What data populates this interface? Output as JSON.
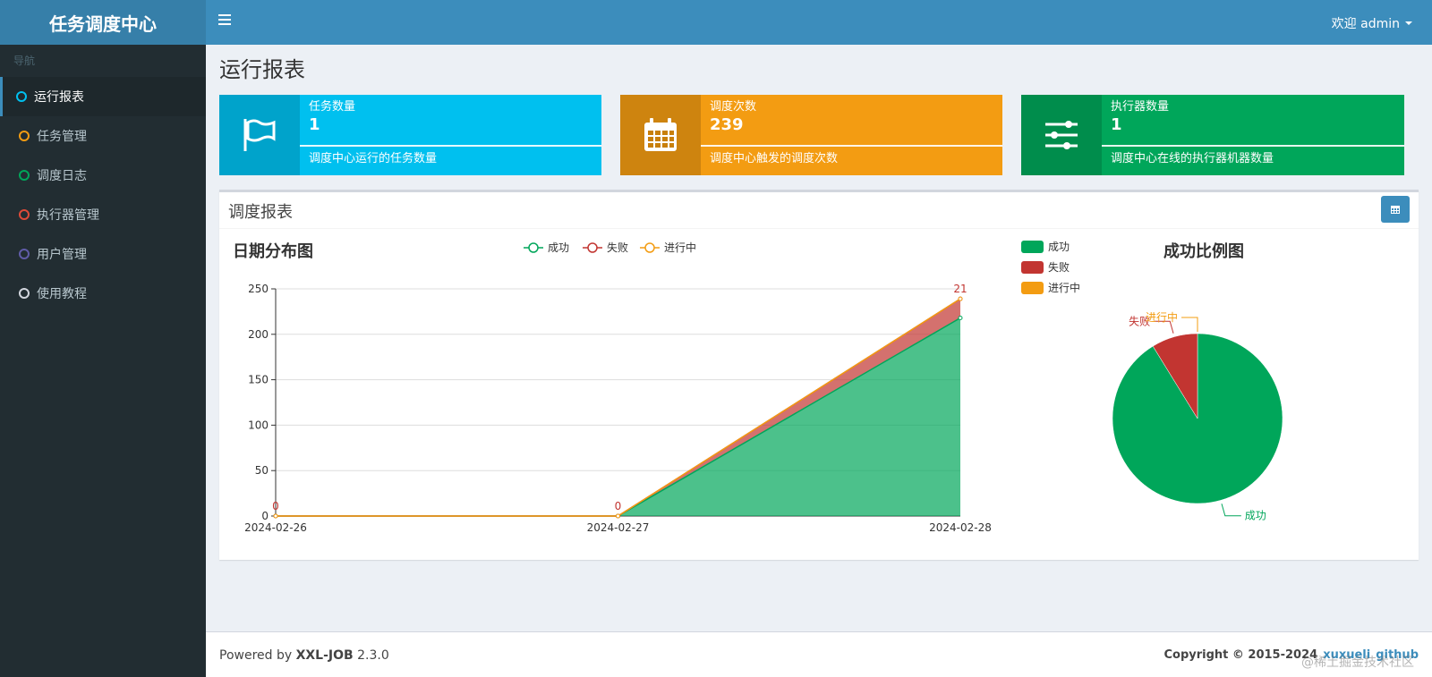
{
  "app": {
    "logo_title": "任务调度中心"
  },
  "header": {
    "welcome": "欢迎 admin"
  },
  "sidebar": {
    "nav_header": "导航",
    "items": [
      {
        "label": "运行报表",
        "color": "#00c0ef"
      },
      {
        "label": "任务管理",
        "color": "#f39c12"
      },
      {
        "label": "调度日志",
        "color": "#00a65a"
      },
      {
        "label": "执行器管理",
        "color": "#dd4b39"
      },
      {
        "label": "用户管理",
        "color": "#605ca8"
      },
      {
        "label": "使用教程",
        "color": "#d2d6de"
      }
    ]
  },
  "page": {
    "title": "运行报表"
  },
  "info_boxes": [
    {
      "label": "任务数量",
      "value": "1",
      "desc": "调度中心运行的任务数量",
      "color": "#00c0ef",
      "icon": "flag-icon"
    },
    {
      "label": "调度次数",
      "value": "239",
      "desc": "调度中心触发的调度次数",
      "color": "#f39c12",
      "icon": "calendar-icon"
    },
    {
      "label": "执行器数量",
      "value": "1",
      "desc": "调度中心在线的执行器机器数量",
      "color": "#00a65a",
      "icon": "sliders-icon"
    }
  ],
  "report": {
    "title": "调度报表"
  },
  "chart_data": [
    {
      "type": "area",
      "title": "日期分布图",
      "categories": [
        "2024-02-26",
        "2024-02-27",
        "2024-02-28"
      ],
      "series": [
        {
          "name": "成功",
          "values": [
            0,
            0,
            218
          ],
          "color": "#00a65a"
        },
        {
          "name": "失败",
          "values": [
            0,
            0,
            21
          ],
          "color": "#c23531"
        },
        {
          "name": "进行中",
          "values": [
            0,
            0,
            0
          ],
          "color": "#f39c12"
        }
      ],
      "ylim": [
        0,
        250
      ],
      "yticks": [
        0,
        50,
        100,
        150,
        200,
        250
      ],
      "stacked": true,
      "data_labels": [
        "0",
        "0",
        "21"
      ],
      "legend_position": "top"
    },
    {
      "type": "pie",
      "title": "成功比例图",
      "slices": [
        {
          "name": "成功",
          "value": 218,
          "color": "#00a65a"
        },
        {
          "name": "失败",
          "value": 21,
          "color": "#c23531"
        },
        {
          "name": "进行中",
          "value": 0,
          "color": "#f39c12"
        }
      ],
      "legend_position": "top-left"
    }
  ],
  "footer": {
    "powered_prefix": "Powered by ",
    "product": "XXL-JOB",
    "version": " 2.3.0",
    "copyright": "Copyright © 2015-2024",
    "link1": "xuxueli",
    "link2": "github"
  },
  "watermark": "@稀土掘金技术社区"
}
